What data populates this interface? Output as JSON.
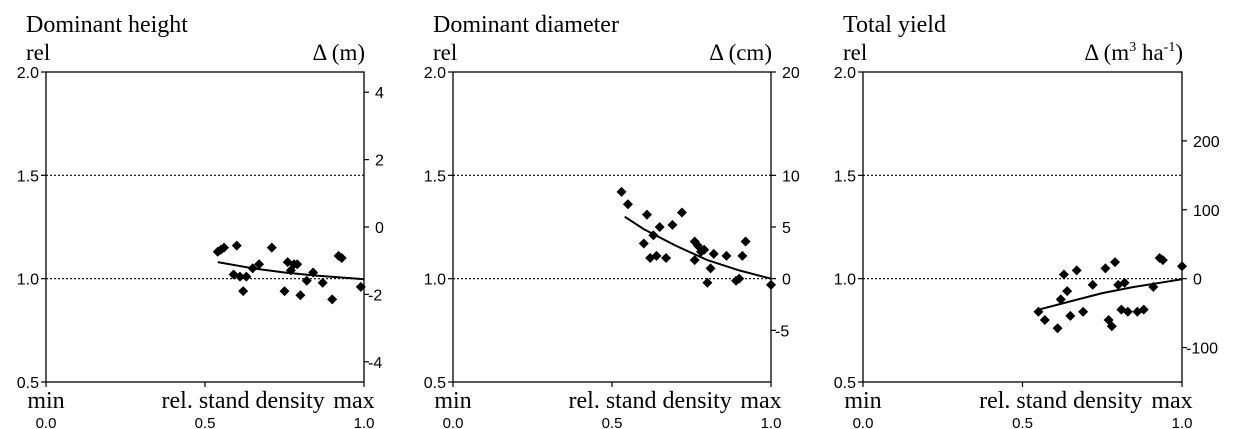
{
  "chart_data": [
    {
      "type": "scatter",
      "title": "Dominant height",
      "left_axis_label": "rel",
      "right_axis_label": "Δ (m)",
      "right_axis_unit_superscript": "",
      "right_axis_unit_close": "",
      "xlabel": "rel. stand density",
      "x_end_labels": [
        "min",
        "max"
      ],
      "xlim": [
        0,
        1
      ],
      "x_ticks": [
        "0.0",
        "0.5",
        "1.0"
      ],
      "ylim": [
        0.5,
        2.0
      ],
      "y_ticks": [
        "0.5",
        "1.0",
        "1.5",
        "2.0"
      ],
      "reference_lines": [
        1.0,
        1.5
      ],
      "right_axis": {
        "range": [
          -4.6,
          4.6
        ],
        "ticks": [
          "4",
          "2",
          "0",
          "-2",
          "-4"
        ],
        "tick_values": [
          4,
          2,
          0,
          -2,
          -4
        ]
      },
      "series": [
        {
          "type": "scatter",
          "marker": "diamond",
          "x": [
            0.54,
            0.55,
            0.56,
            0.59,
            0.6,
            0.61,
            0.62,
            0.63,
            0.65,
            0.67,
            0.71,
            0.75,
            0.76,
            0.77,
            0.78,
            0.79,
            0.8,
            0.82,
            0.84,
            0.87,
            0.9,
            0.92,
            0.93,
            0.99
          ],
          "y": [
            1.13,
            1.14,
            1.15,
            1.02,
            1.16,
            1.01,
            0.94,
            1.01,
            1.05,
            1.07,
            1.15,
            0.94,
            1.08,
            1.04,
            1.07,
            1.07,
            0.92,
            0.99,
            1.03,
            0.98,
            0.9,
            1.11,
            1.1,
            0.96
          ]
        },
        {
          "type": "line",
          "x": [
            0.54,
            0.65,
            0.75,
            0.85,
            0.95,
            1.0
          ],
          "y": [
            1.08,
            1.05,
            1.03,
            1.015,
            1.003,
            0.997
          ]
        }
      ]
    },
    {
      "type": "scatter",
      "title": "Dominant diameter",
      "left_axis_label": "rel",
      "right_axis_label": "Δ (cm)",
      "right_axis_unit_superscript": "",
      "right_axis_unit_close": "",
      "xlabel": "rel. stand density",
      "x_end_labels": [
        "min",
        "max"
      ],
      "xlim": [
        0,
        1
      ],
      "x_ticks": [
        "0.0",
        "0.5",
        "1.0"
      ],
      "ylim": [
        0.5,
        2.0
      ],
      "y_ticks": [
        "0.5",
        "1.0",
        "1.5",
        "2.0"
      ],
      "reference_lines": [
        1.0,
        1.5
      ],
      "right_axis": {
        "range": [
          -10,
          20
        ],
        "ticks": [
          "20",
          "10",
          "5",
          "0",
          "-5"
        ],
        "tick_values": [
          20,
          10,
          5,
          0,
          -5
        ]
      },
      "series": [
        {
          "type": "scatter",
          "marker": "diamond",
          "x": [
            0.53,
            0.55,
            0.6,
            0.61,
            0.62,
            0.63,
            0.64,
            0.65,
            0.67,
            0.69,
            0.72,
            0.76,
            0.76,
            0.77,
            0.78,
            0.79,
            0.8,
            0.81,
            0.82,
            0.86,
            0.89,
            0.9,
            0.91,
            0.92,
            1.0
          ],
          "y": [
            1.42,
            1.36,
            1.17,
            1.31,
            1.1,
            1.21,
            1.11,
            1.25,
            1.1,
            1.26,
            1.32,
            1.18,
            1.09,
            1.16,
            1.13,
            1.14,
            0.98,
            1.05,
            1.12,
            1.11,
            0.99,
            1.0,
            1.11,
            1.18,
            0.97
          ]
        },
        {
          "type": "line",
          "x": [
            0.54,
            0.6,
            0.7,
            0.8,
            0.9,
            1.0
          ],
          "y": [
            1.3,
            1.24,
            1.16,
            1.09,
            1.04,
            1.0
          ]
        }
      ]
    },
    {
      "type": "scatter",
      "title": "Total yield",
      "left_axis_label": "rel",
      "right_axis_label": "Δ (m",
      "right_axis_unit_superscript": "3",
      "right_axis_unit_mid": " ha",
      "right_axis_unit_superscript2": "-1",
      "right_axis_unit_close": ")",
      "xlabel": "rel. stand density",
      "x_end_labels": [
        "min",
        "max"
      ],
      "xlim": [
        0,
        1
      ],
      "x_ticks": [
        "0.0",
        "0.5",
        "1.0"
      ],
      "ylim": [
        0.5,
        2.0
      ],
      "y_ticks": [
        "0.5",
        "1.0",
        "1.5",
        "2.0"
      ],
      "reference_lines": [
        1.0,
        1.5
      ],
      "right_axis": {
        "range": [
          -150,
          300
        ],
        "ticks": [
          "200",
          "100",
          "0",
          "-100"
        ],
        "tick_values": [
          200,
          100,
          0,
          -100
        ]
      },
      "series": [
        {
          "type": "scatter",
          "marker": "diamond",
          "x": [
            0.55,
            0.57,
            0.61,
            0.62,
            0.63,
            0.64,
            0.65,
            0.67,
            0.69,
            0.72,
            0.76,
            0.77,
            0.78,
            0.79,
            0.8,
            0.81,
            0.82,
            0.83,
            0.86,
            0.88,
            0.91,
            0.93,
            0.94,
            1.0
          ],
          "y": [
            0.84,
            0.8,
            0.76,
            0.9,
            1.02,
            0.94,
            0.82,
            1.04,
            0.84,
            0.97,
            1.05,
            0.8,
            0.77,
            1.08,
            0.97,
            0.85,
            0.98,
            0.84,
            0.84,
            0.85,
            0.96,
            1.1,
            1.09,
            1.06
          ]
        },
        {
          "type": "line",
          "x": [
            0.55,
            0.65,
            0.75,
            0.85,
            0.95,
            1.0
          ],
          "y": [
            0.85,
            0.89,
            0.93,
            0.96,
            0.985,
            0.997
          ]
        }
      ]
    }
  ]
}
